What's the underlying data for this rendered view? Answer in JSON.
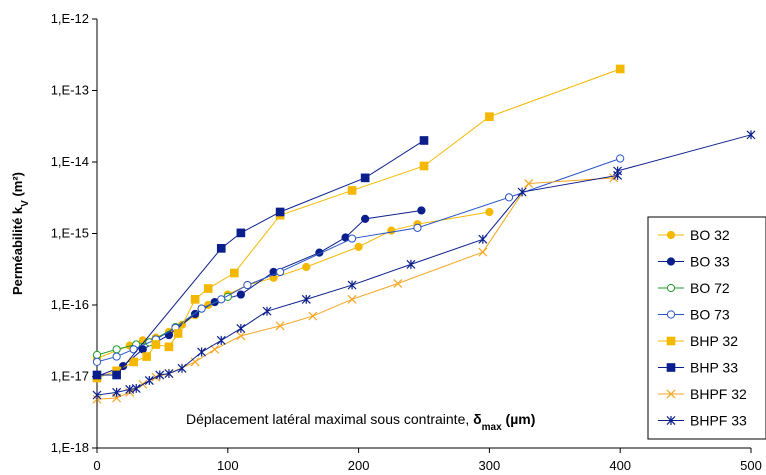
{
  "chart_data": {
    "type": "line",
    "ylabel": {
      "main": "Perméabilité k",
      "sub": "V",
      "unit": " (m²)"
    },
    "annotation": {
      "text": "Déplacement latéral maximal sous contrainte, ",
      "symbol": "δ",
      "sub": "max",
      "unit": " (µm)"
    },
    "xlim": [
      0,
      500
    ],
    "ylim_log10": [
      -18,
      -12
    ],
    "log_y": true,
    "grid": false,
    "legend_position": "right",
    "x_ticks": [
      {
        "v": 0,
        "label": "0"
      },
      {
        "v": 100,
        "label": "100"
      },
      {
        "v": 200,
        "label": "200"
      },
      {
        "v": 300,
        "label": "300"
      },
      {
        "v": 400,
        "label": "400"
      },
      {
        "v": 500,
        "label": "500"
      }
    ],
    "y_ticks": [
      {
        "v": -12,
        "label": "1,E-12"
      },
      {
        "v": -13,
        "label": "1,E-13"
      },
      {
        "v": -14,
        "label": "1,E-14"
      },
      {
        "v": -15,
        "label": "1,E-15"
      },
      {
        "v": -16,
        "label": "1,E-16"
      },
      {
        "v": -17,
        "label": "1,E-17"
      },
      {
        "v": -18,
        "label": "1,E-18"
      }
    ],
    "series": [
      {
        "name": "BO 32",
        "color": "#f5b800",
        "marker": "circle",
        "filled": true,
        "points": [
          [
            0,
            1.8e-17
          ],
          [
            25,
            2.7e-17
          ],
          [
            35,
            3.2e-17
          ],
          [
            45,
            3.5e-17
          ],
          [
            55,
            4.2e-17
          ],
          [
            65,
            5.3e-17
          ],
          [
            75,
            7.2e-17
          ],
          [
            85,
            1e-16
          ],
          [
            100,
            1.4e-16
          ],
          [
            115,
            1.9e-16
          ],
          [
            135,
            2.4e-16
          ],
          [
            160,
            3.4e-16
          ],
          [
            200,
            6.5e-16
          ],
          [
            225,
            1.1e-15
          ],
          [
            245,
            1.35e-15
          ],
          [
            300,
            2e-15
          ]
        ]
      },
      {
        "name": "BO 33",
        "color": "#0b1f8c",
        "marker": "circle",
        "filled": true,
        "points": [
          [
            0,
            1e-17
          ],
          [
            20,
            1.4e-17
          ],
          [
            35,
            2.4e-17
          ],
          [
            55,
            3.8e-17
          ],
          [
            75,
            7.5e-17
          ],
          [
            90,
            1.1e-16
          ],
          [
            110,
            1.4e-16
          ],
          [
            135,
            2.9e-16
          ],
          [
            170,
            5.4e-16
          ],
          [
            190,
            8.8e-16
          ],
          [
            205,
            1.6e-15
          ],
          [
            248,
            2.1e-15
          ]
        ]
      },
      {
        "name": "BO 72",
        "color": "#1e9a2c",
        "marker": "circle",
        "filled": false,
        "points": [
          [
            0,
            2e-17
          ],
          [
            15,
            2.4e-17
          ],
          [
            30,
            2.8e-17
          ],
          [
            40,
            3e-17
          ],
          [
            60,
            4.9e-17
          ],
          [
            80,
            8.9e-17
          ],
          [
            100,
            1.3e-16
          ]
        ]
      },
      {
        "name": "BO 73",
        "color": "#2a56c6",
        "marker": "circle",
        "filled": false,
        "points": [
          [
            0,
            1.6e-17
          ],
          [
            15,
            1.9e-17
          ],
          [
            28,
            2.4e-17
          ],
          [
            45,
            3.3e-17
          ],
          [
            60,
            4.8e-17
          ],
          [
            80,
            8.9e-17
          ],
          [
            95,
            1.2e-16
          ],
          [
            115,
            1.9e-16
          ],
          [
            140,
            2.9e-16
          ],
          [
            195,
            8.5e-16
          ],
          [
            245,
            1.2e-15
          ],
          [
            315,
            3.2e-15
          ],
          [
            400,
            1.12e-14
          ]
        ]
      },
      {
        "name": "BHP 32",
        "color": "#f5b800",
        "marker": "square",
        "filled": true,
        "points": [
          [
            0,
            9.5e-18
          ],
          [
            15,
            1.2e-17
          ],
          [
            28,
            1.6e-17
          ],
          [
            38,
            1.9e-17
          ],
          [
            45,
            2.8e-17
          ],
          [
            55,
            2.6e-17
          ],
          [
            62,
            4e-17
          ],
          [
            75,
            1.2e-16
          ],
          [
            85,
            1.7e-16
          ],
          [
            105,
            2.8e-16
          ],
          [
            140,
            1.8e-15
          ],
          [
            195,
            4e-15
          ],
          [
            250,
            8.8e-15
          ],
          [
            300,
            4.3e-14
          ],
          [
            400,
            2e-13
          ]
        ]
      },
      {
        "name": "BHP 33",
        "color": "#0b1f8c",
        "marker": "square",
        "filled": true,
        "points": [
          [
            0,
            1.05e-17
          ],
          [
            15,
            1.05e-17
          ],
          [
            95,
            6.2e-16
          ],
          [
            110,
            1.02e-15
          ],
          [
            140,
            2e-15
          ],
          [
            205,
            6e-15
          ],
          [
            250,
            2e-14
          ]
        ]
      },
      {
        "name": "BHPF 32",
        "color": "#f5a623",
        "marker": "x",
        "filled": false,
        "points": [
          [
            0,
            4.8e-18
          ],
          [
            15,
            5e-18
          ],
          [
            25,
            6e-18
          ],
          [
            35,
            7.8e-18
          ],
          [
            45,
            9.8e-18
          ],
          [
            55,
            1.1e-17
          ],
          [
            75,
            1.6e-17
          ],
          [
            90,
            2.4e-17
          ],
          [
            110,
            3.7e-17
          ],
          [
            140,
            5.1e-17
          ],
          [
            165,
            7e-17
          ],
          [
            195,
            1.2e-16
          ],
          [
            230,
            2e-16
          ],
          [
            295,
            5.5e-16
          ],
          [
            330,
            5e-15
          ],
          [
            395,
            6e-15
          ]
        ]
      },
      {
        "name": "BHPF 33",
        "color": "#0b1f8c",
        "marker": "star",
        "filled": false,
        "points": [
          [
            0,
            5.5e-18
          ],
          [
            15,
            6e-18
          ],
          [
            25,
            6.6e-18
          ],
          [
            30,
            6.8e-18
          ],
          [
            40,
            8.8e-18
          ],
          [
            48,
            1.05e-17
          ],
          [
            55,
            1.1e-17
          ],
          [
            65,
            1.3e-17
          ],
          [
            80,
            2.2e-17
          ],
          [
            95,
            3.2e-17
          ],
          [
            110,
            4.7e-17
          ],
          [
            130,
            8.2e-17
          ],
          [
            160,
            1.2e-16
          ],
          [
            195,
            1.9e-16
          ],
          [
            240,
            3.7e-16
          ],
          [
            295,
            8.3e-16
          ],
          [
            325,
            3.8e-15
          ],
          [
            398,
            6.5e-15
          ],
          [
            398,
            7.5e-15
          ],
          [
            500,
            2.4e-14
          ]
        ]
      }
    ]
  }
}
